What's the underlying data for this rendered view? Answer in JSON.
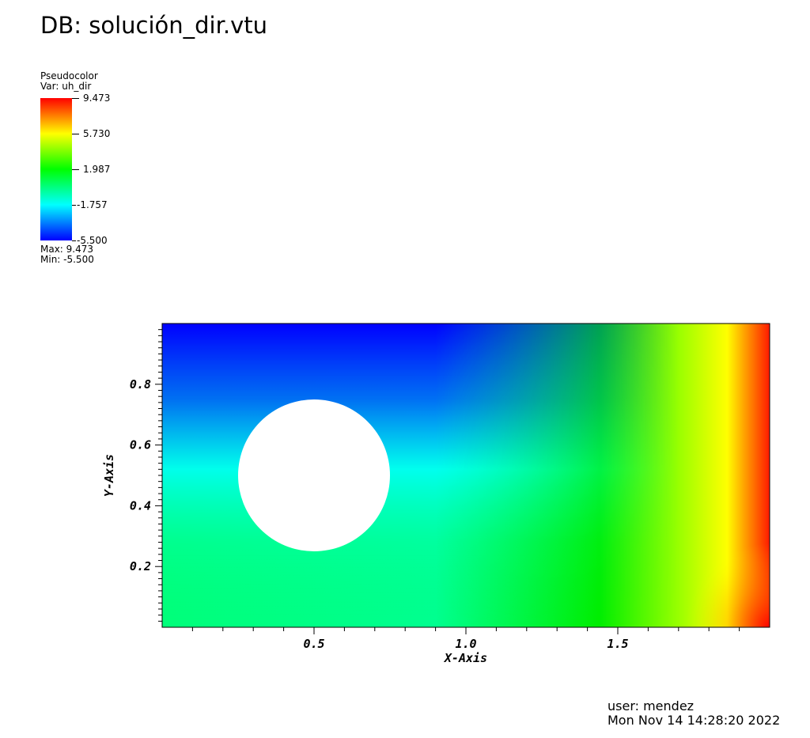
{
  "header": {
    "db_title": "DB: solución_dir.vtu"
  },
  "legend": {
    "plot_type": "Pseudocolor",
    "variable": "Var: uh_dir",
    "ticks": [
      "9.473",
      "5.730",
      "1.987",
      "-1.757",
      "-5.500"
    ],
    "max_label": "Max:  9.473",
    "min_label": "Min: -5.500",
    "colormap": [
      "#0000ff",
      "#00ffff",
      "#00ff00",
      "#ffff00",
      "#ff0000"
    ]
  },
  "footer": {
    "user": "user: mendez",
    "timestamp": "Mon Nov 14 14:28:20 2022"
  },
  "chart_data": {
    "type": "heatmap",
    "title": "",
    "xlabel": "X-Axis",
    "ylabel": "Y-Axis",
    "xlim": [
      0,
      2
    ],
    "ylim": [
      0,
      1
    ],
    "x_ticks": [
      0.5,
      1.0,
      1.5
    ],
    "x_tick_labels": [
      "0.5",
      "1.0",
      "1.5"
    ],
    "y_ticks": [
      0.2,
      0.4,
      0.6,
      0.8
    ],
    "y_tick_labels": [
      "0.2",
      "0.4",
      "0.6",
      "0.8"
    ],
    "field": {
      "variable": "uh_dir",
      "min": -5.5,
      "max": 9.473
    },
    "hole": {
      "shape": "circle",
      "center": [
        0.5,
        0.5
      ],
      "radius": 0.25
    },
    "grid": false
  }
}
